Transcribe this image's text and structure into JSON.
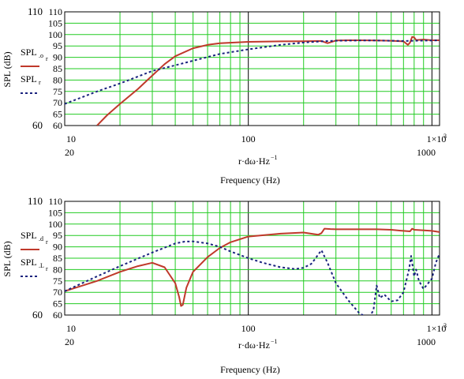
{
  "chart_data": [
    {
      "type": "line",
      "xscale": "log",
      "xlim": [
        10,
        1100
      ],
      "ylim": [
        60,
        110
      ],
      "grid": true,
      "yticks": [
        "60",
        "65",
        "70",
        "75",
        "80",
        "85",
        "90",
        "95",
        "100",
        "105",
        "110"
      ],
      "y_big_labels": [
        "60",
        "110"
      ],
      "x_tick_labels_top": [
        "10",
        "100",
        "1×10"
      ],
      "x_tick_sup": "3",
      "x_tick_labels_bottom": [
        "20",
        "1000"
      ],
      "xlabel": "r·dω·Hz",
      "xlabel_sup": "−1",
      "xlabel2": "Frequency (Hz)",
      "ylabel": "SPL (dB)",
      "legend_placement": "left",
      "series": [
        {
          "name": "SPL",
          "sub": ".o",
          "subsub": "r",
          "color": "#c0392b",
          "dash": "solid",
          "x": [
            15,
            17,
            20,
            25,
            30,
            35,
            40,
            50,
            60,
            70,
            100,
            150,
            200,
            250,
            270,
            290,
            300,
            350,
            400,
            500,
            600,
            700,
            740,
            760,
            780,
            800,
            820,
            900,
            1000,
            1100
          ],
          "y": [
            60,
            64.5,
            69.5,
            76,
            82,
            87,
            90.5,
            94,
            95.5,
            96.2,
            96.8,
            97,
            97.1,
            97.2,
            96.2,
            97,
            97.4,
            97.5,
            97.5,
            97.4,
            97.3,
            97,
            95.5,
            96.5,
            99,
            98.8,
            97.6,
            97.8,
            97.5,
            97.5
          ]
        },
        {
          "name": "SPL",
          "sub": "r",
          "subsub": "",
          "color": "#1a237e",
          "dash": "dotted",
          "x": [
            10,
            15,
            20,
            30,
            40,
            50,
            70,
            100,
            150,
            200,
            250,
            300,
            400,
            500,
            600,
            700,
            800,
            1000,
            1100
          ],
          "y": [
            69.5,
            75,
            78.5,
            84,
            86.5,
            88.5,
            91.5,
            93.5,
            95.5,
            96.5,
            97,
            97.3,
            97.4,
            97.4,
            97.3,
            97.2,
            97.3,
            97.4,
            97.5
          ]
        }
      ]
    },
    {
      "type": "line",
      "xscale": "log",
      "xlim": [
        10,
        1100
      ],
      "ylim": [
        60,
        110
      ],
      "grid": true,
      "yticks": [
        "60",
        "65",
        "70",
        "75",
        "80",
        "85",
        "90",
        "95",
        "100",
        "105",
        "110"
      ],
      "y_big_labels": [
        "60",
        "110"
      ],
      "x_tick_labels_top": [
        "10",
        "100",
        "1×10"
      ],
      "x_tick_sup": "3",
      "x_tick_labels_bottom": [
        "20",
        "1000"
      ],
      "xlabel": "r·dω·Hz",
      "xlabel_sup": "−1",
      "xlabel2": "Frequency (Hz)",
      "ylabel": "SPL (dB)",
      "legend_placement": "left",
      "series": [
        {
          "name": "SPL",
          "sub": ".d",
          "subsub": "r",
          "color": "#c0392b",
          "dash": "solid",
          "x": [
            10,
            15,
            20,
            25,
            30,
            35,
            40,
            42,
            43,
            44,
            46,
            50,
            60,
            70,
            80,
            100,
            150,
            200,
            240,
            250,
            260,
            280,
            300,
            400,
            500,
            600,
            700,
            760,
            780,
            800,
            1000,
            1100
          ],
          "y": [
            70.5,
            75,
            79,
            81.5,
            83,
            81,
            74,
            68,
            64,
            64.5,
            72,
            79,
            85.5,
            89.5,
            92,
            94.5,
            95.8,
            96.3,
            95.3,
            96,
            98,
            97.8,
            97.7,
            97.7,
            97.7,
            97.5,
            97,
            96.8,
            98,
            97.5,
            97,
            96.5
          ]
        },
        {
          "name": "SPL",
          "sub": ".L",
          "subsub": "r",
          "color": "#1a237e",
          "dash": "dotted",
          "x": [
            10,
            15,
            20,
            30,
            40,
            45,
            50,
            60,
            70,
            80,
            100,
            120,
            150,
            180,
            200,
            220,
            230,
            250,
            270,
            300,
            350,
            400,
            450,
            480,
            500,
            520,
            550,
            600,
            650,
            700,
            750,
            770,
            780,
            800,
            820,
            850,
            900,
            1000,
            1050,
            1100
          ],
          "y": [
            70.5,
            77,
            81.5,
            87.5,
            91.5,
            92.3,
            92.4,
            91.5,
            90,
            88,
            85,
            83,
            81,
            80.2,
            80.8,
            82.5,
            84.5,
            88.5,
            83,
            74,
            66.5,
            61,
            58.5,
            62,
            73,
            67.5,
            69,
            66,
            66.5,
            70,
            80,
            86,
            83,
            77,
            80,
            75,
            71.5,
            76,
            83,
            87
          ]
        }
      ]
    }
  ]
}
